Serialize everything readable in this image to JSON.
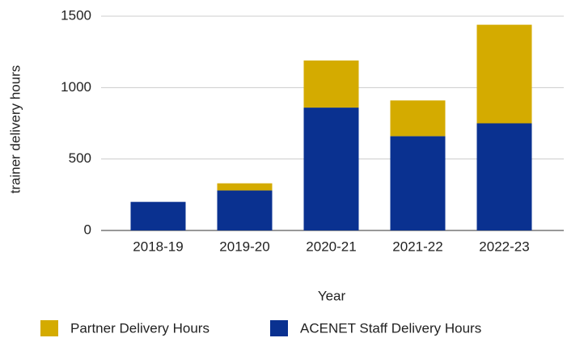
{
  "chart_data": {
    "type": "stacked_bar",
    "x_label": "Year",
    "y_label": "trainer delivery hours",
    "categories": [
      "2018-19",
      "2019-20",
      "2020-21",
      "2021-22",
      "2022-23"
    ],
    "series": [
      {
        "name": "Partner Delivery Hours",
        "color": "#d4ab00",
        "values": [
          0,
          50,
          330,
          250,
          690
        ]
      },
      {
        "name": "ACENET Staff Delivery Hours",
        "color": "#0a3190",
        "values": [
          200,
          280,
          860,
          660,
          750
        ]
      }
    ],
    "ylim": [
      0,
      1500
    ],
    "yticks": [
      0,
      500,
      1000,
      1500
    ],
    "grid": true,
    "legend": "bottom"
  }
}
